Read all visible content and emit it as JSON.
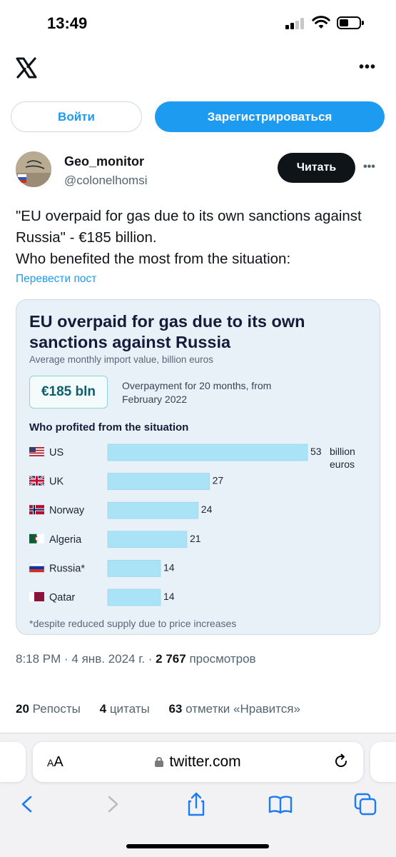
{
  "status_bar": {
    "time": "13:49"
  },
  "header": {
    "logo": "x-logo-icon",
    "more": "•••"
  },
  "auth": {
    "login_label": "Войти",
    "register_label": "Зарегистрироваться"
  },
  "tweet": {
    "display_name": "Geo_monitor",
    "handle": "@colonelhomsi",
    "read_label": "Читать",
    "more": "•••",
    "text_line1": "\"EU overpaid for gas due to its own sanctions against Russia\" - €185 billion.",
    "text_line2": "Who benefited the most from the situation:",
    "translate_label": "Перевести пост",
    "time": "8:18 PM",
    "date": "4 янв. 2024 г.",
    "views_count": "2 767",
    "views_label": "просмотров",
    "reposts_count": "20",
    "reposts_label": "Репосты",
    "quotes_count": "4",
    "quotes_label": "цитаты",
    "likes_count": "63",
    "likes_label": "отметки «Нравится»"
  },
  "chart_image": {
    "title": "EU overpaid for gas due to its own sanctions against Russia",
    "subtitle": "Average monthly import value, billion euros",
    "badge": "€185 bln",
    "overpayment_text": "Overpayment for 20 months, from February 2022",
    "heading": "Who profited from the situation",
    "footnote": "*despite reduced supply due to price increases"
  },
  "chart_data": {
    "type": "bar",
    "orientation": "horizontal",
    "title": "Who profited from the situation",
    "categories": [
      "US",
      "UK",
      "Norway",
      "Algeria",
      "Russia*",
      "Qatar"
    ],
    "values": [
      53,
      27,
      24,
      21,
      14,
      14
    ],
    "value_unit_label": "billion euros",
    "bar_color": "#a9e3f5",
    "flags": [
      "us-flag-icon",
      "uk-flag-icon",
      "norway-flag-icon",
      "algeria-flag-icon",
      "russia-flag-icon",
      "qatar-flag-icon"
    ]
  },
  "browser": {
    "aa_label": "AA",
    "url": "twitter.com",
    "icons": [
      "back-icon",
      "forward-icon",
      "share-icon",
      "bookmarks-icon",
      "tabs-icon"
    ]
  },
  "colors": {
    "accent": "#1d9bf0",
    "dark": "#0f1419",
    "muted": "#536471"
  }
}
